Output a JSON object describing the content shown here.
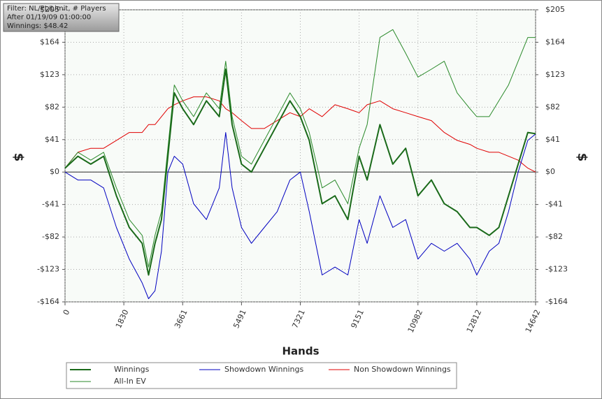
{
  "chart_data": {
    "type": "line",
    "info": [
      "Filter: NL/PL/Limit, # Players",
      "After 01/19/09 01:00:00",
      "Winnings: $48.42"
    ],
    "xlabel": "Hands",
    "ylabel": "$",
    "y2label": "$",
    "x": [
      0,
      400,
      800,
      1200,
      1600,
      2000,
      2400,
      2600,
      2800,
      3000,
      3200,
      3400,
      3661,
      4000,
      4400,
      4800,
      5000,
      5200,
      5491,
      5800,
      6200,
      6600,
      7000,
      7321,
      7600,
      8000,
      8400,
      8800,
      9151,
      9400,
      9800,
      10200,
      10600,
      10982,
      11400,
      11800,
      12200,
      12600,
      12812,
      13200,
      13500,
      13800,
      14100,
      14400,
      14642
    ],
    "series": [
      {
        "name": "Winnings",
        "color": "#1a6a1a",
        "width": 2,
        "values": [
          5,
          20,
          10,
          20,
          -30,
          -70,
          -90,
          -130,
          -90,
          -60,
          20,
          100,
          80,
          60,
          90,
          70,
          130,
          60,
          10,
          0,
          30,
          60,
          90,
          70,
          40,
          -40,
          -30,
          -60,
          20,
          -10,
          60,
          10,
          30,
          -30,
          -10,
          -40,
          -50,
          -70,
          -70,
          -80,
          -70,
          -30,
          10,
          50,
          48.42
        ]
      },
      {
        "name": "Showdown Winnings",
        "color": "#0000c0",
        "width": 1,
        "values": [
          0,
          -10,
          -10,
          -20,
          -70,
          -110,
          -140,
          -160,
          -150,
          -100,
          0,
          20,
          10,
          -40,
          -60,
          -20,
          50,
          -20,
          -70,
          -90,
          -70,
          -50,
          -10,
          0,
          -50,
          -130,
          -120,
          -130,
          -60,
          -90,
          -30,
          -70,
          -60,
          -110,
          -90,
          -100,
          -90,
          -110,
          -130,
          -100,
          -90,
          -50,
          0,
          40,
          48
        ]
      },
      {
        "name": "Non Showdown Winnings",
        "color": "#e00000",
        "width": 1,
        "values": [
          5,
          25,
          30,
          30,
          40,
          50,
          50,
          60,
          60,
          70,
          80,
          85,
          90,
          95,
          95,
          90,
          80,
          75,
          65,
          55,
          55,
          65,
          75,
          70,
          80,
          70,
          85,
          80,
          75,
          85,
          90,
          80,
          75,
          70,
          65,
          50,
          40,
          35,
          30,
          25,
          25,
          20,
          15,
          5,
          0
        ]
      },
      {
        "name": "All-In EV",
        "color": "#2a8a2a",
        "width": 1,
        "values": [
          5,
          25,
          15,
          25,
          -20,
          -60,
          -80,
          -120,
          -80,
          -50,
          30,
          110,
          90,
          70,
          100,
          80,
          140,
          70,
          20,
          10,
          40,
          70,
          100,
          80,
          50,
          -20,
          -10,
          -40,
          30,
          60,
          170,
          180,
          150,
          120,
          130,
          140,
          100,
          80,
          70,
          70,
          90,
          110,
          140,
          170,
          170
        ]
      }
    ],
    "xlim": [
      0,
      14642
    ],
    "xticks": [
      0,
      1830,
      3661,
      5491,
      7321,
      9151,
      10982,
      12812,
      14642
    ],
    "ylim": [
      -164,
      205
    ],
    "yticks": [
      {
        "value": -164,
        "label": "-$164"
      },
      {
        "value": -123,
        "label": "-$123"
      },
      {
        "value": -82,
        "label": "-$82"
      },
      {
        "value": -41,
        "label": "-$41"
      },
      {
        "value": 0,
        "label": "$0"
      },
      {
        "value": 41,
        "label": "$41"
      },
      {
        "value": 82,
        "label": "$82"
      },
      {
        "value": 123,
        "label": "$123"
      },
      {
        "value": 164,
        "label": "$164"
      },
      {
        "value": 205,
        "label": "$205"
      }
    ],
    "y2lim": [
      -164,
      205
    ],
    "y2ticks": [
      {
        "value": -164,
        "label": "-$164"
      },
      {
        "value": -123,
        "label": "-$123"
      },
      {
        "value": -82,
        "label": "-$82"
      },
      {
        "value": -41,
        "label": "-$41"
      },
      {
        "value": 0,
        "label": "$0"
      },
      {
        "value": 41,
        "label": "$41"
      },
      {
        "value": 82,
        "label": "$82"
      },
      {
        "value": 123,
        "label": "$123"
      },
      {
        "value": 164,
        "label": "$164"
      },
      {
        "value": 205,
        "label": "$205"
      }
    ],
    "grid": true
  }
}
